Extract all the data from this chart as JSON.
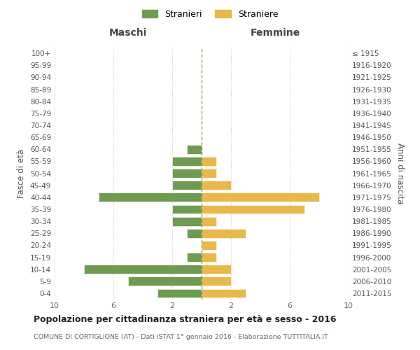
{
  "age_groups": [
    "0-4",
    "5-9",
    "10-14",
    "15-19",
    "20-24",
    "25-29",
    "30-34",
    "35-39",
    "40-44",
    "45-49",
    "50-54",
    "55-59",
    "60-64",
    "65-69",
    "70-74",
    "75-79",
    "80-84",
    "85-89",
    "90-94",
    "95-99",
    "100+"
  ],
  "birth_years": [
    "2011-2015",
    "2006-2010",
    "2001-2005",
    "1996-2000",
    "1991-1995",
    "1986-1990",
    "1981-1985",
    "1976-1980",
    "1971-1975",
    "1966-1970",
    "1961-1965",
    "1956-1960",
    "1951-1955",
    "1946-1950",
    "1941-1945",
    "1936-1940",
    "1931-1935",
    "1926-1930",
    "1921-1925",
    "1916-1920",
    "≤ 1915"
  ],
  "maschi": [
    3,
    5,
    8,
    1,
    0,
    1,
    2,
    2,
    7,
    2,
    2,
    2,
    1,
    0,
    0,
    0,
    0,
    0,
    0,
    0,
    0
  ],
  "femmine": [
    3,
    2,
    2,
    1,
    1,
    3,
    1,
    7,
    8,
    2,
    1,
    1,
    0,
    0,
    0,
    0,
    0,
    0,
    0,
    0,
    0
  ],
  "color_maschi": "#6e9b52",
  "color_femmine": "#e8b84b",
  "title": "Popolazione per cittadinanza straniera per età e sesso - 2016",
  "subtitle": "COMUNE DI CORTIGLIONE (AT) - Dati ISTAT 1° gennaio 2016 - Elaborazione TUTTITALIA.IT",
  "header_left": "Maschi",
  "header_right": "Femmine",
  "ylabel_left": "Fasce di età",
  "ylabel_right": "Anni di nascita",
  "legend_maschi": "Stranieri",
  "legend_femmine": "Straniere",
  "xlim": 10,
  "background_color": "#ffffff",
  "grid_color": "#cccccc",
  "dashed_line_color": "#a0a060"
}
